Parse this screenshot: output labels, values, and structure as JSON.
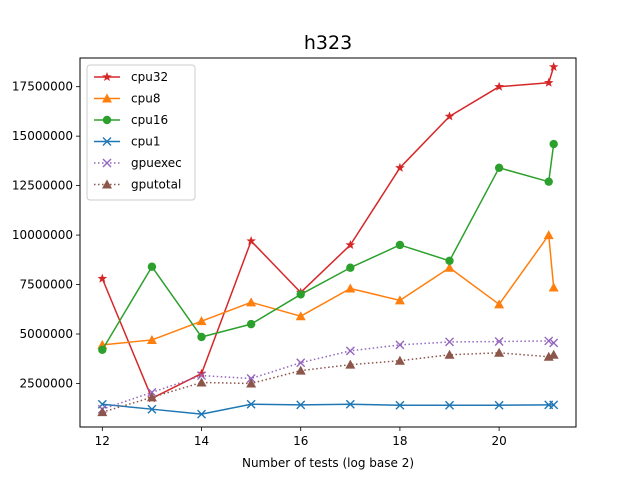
{
  "chart_data": {
    "type": "line",
    "title": "h323",
    "xlabel": "Number of tests (log base 2)",
    "ylabel": "",
    "xlim": [
      11.55,
      21.55
    ],
    "ylim": [
      300000,
      18950000
    ],
    "x_ticks": [
      12,
      14,
      16,
      18,
      20
    ],
    "x_tick_labels": [
      "12",
      "14",
      "16",
      "18",
      "20"
    ],
    "y_ticks": [
      2500000,
      5000000,
      7500000,
      10000000,
      12500000,
      15000000,
      17500000
    ],
    "y_tick_labels": [
      "2500000",
      "5000000",
      "7500000",
      "10000000",
      "12500000",
      "15000000",
      "17500000"
    ],
    "x": [
      12,
      13,
      14,
      15,
      16,
      17,
      18,
      19,
      20,
      21,
      21.1
    ],
    "legend_position": "upper-left",
    "grid": false,
    "series": [
      {
        "name": "cpu32",
        "color": "#d62728",
        "marker": "star",
        "linestyle": "solid",
        "values": [
          7800000,
          1750000,
          3000000,
          9700000,
          7100000,
          9500000,
          13400000,
          16000000,
          17500000,
          17700000,
          18500000
        ]
      },
      {
        "name": "cpu8",
        "color": "#ff7f0e",
        "marker": "triangle",
        "linestyle": "solid",
        "values": [
          4450000,
          4700000,
          5650000,
          6600000,
          5900000,
          7300000,
          6700000,
          8350000,
          6500000,
          10000000,
          7350000
        ]
      },
      {
        "name": "cpu16",
        "color": "#2ca02c",
        "marker": "circle",
        "linestyle": "solid",
        "values": [
          4200000,
          8400000,
          4850000,
          5500000,
          7000000,
          8350000,
          9500000,
          8700000,
          13400000,
          12700000,
          14600000
        ]
      },
      {
        "name": "cpu1",
        "color": "#1f77b4",
        "marker": "x",
        "linestyle": "solid",
        "values": [
          1450000,
          1200000,
          950000,
          1450000,
          1420000,
          1450000,
          1400000,
          1400000,
          1400000,
          1420000,
          1420000
        ]
      },
      {
        "name": "gpuexec",
        "color": "#9467bd",
        "marker": "x",
        "linestyle": "dotted",
        "values": [
          1200000,
          2050000,
          2900000,
          2750000,
          3550000,
          4150000,
          4450000,
          4600000,
          4620000,
          4650000,
          4550000
        ]
      },
      {
        "name": "gputotal",
        "color": "#8c564b",
        "marker": "triangle",
        "linestyle": "dotted",
        "values": [
          1050000,
          1800000,
          2550000,
          2500000,
          3150000,
          3450000,
          3650000,
          3950000,
          4050000,
          3850000,
          3950000
        ]
      }
    ]
  }
}
